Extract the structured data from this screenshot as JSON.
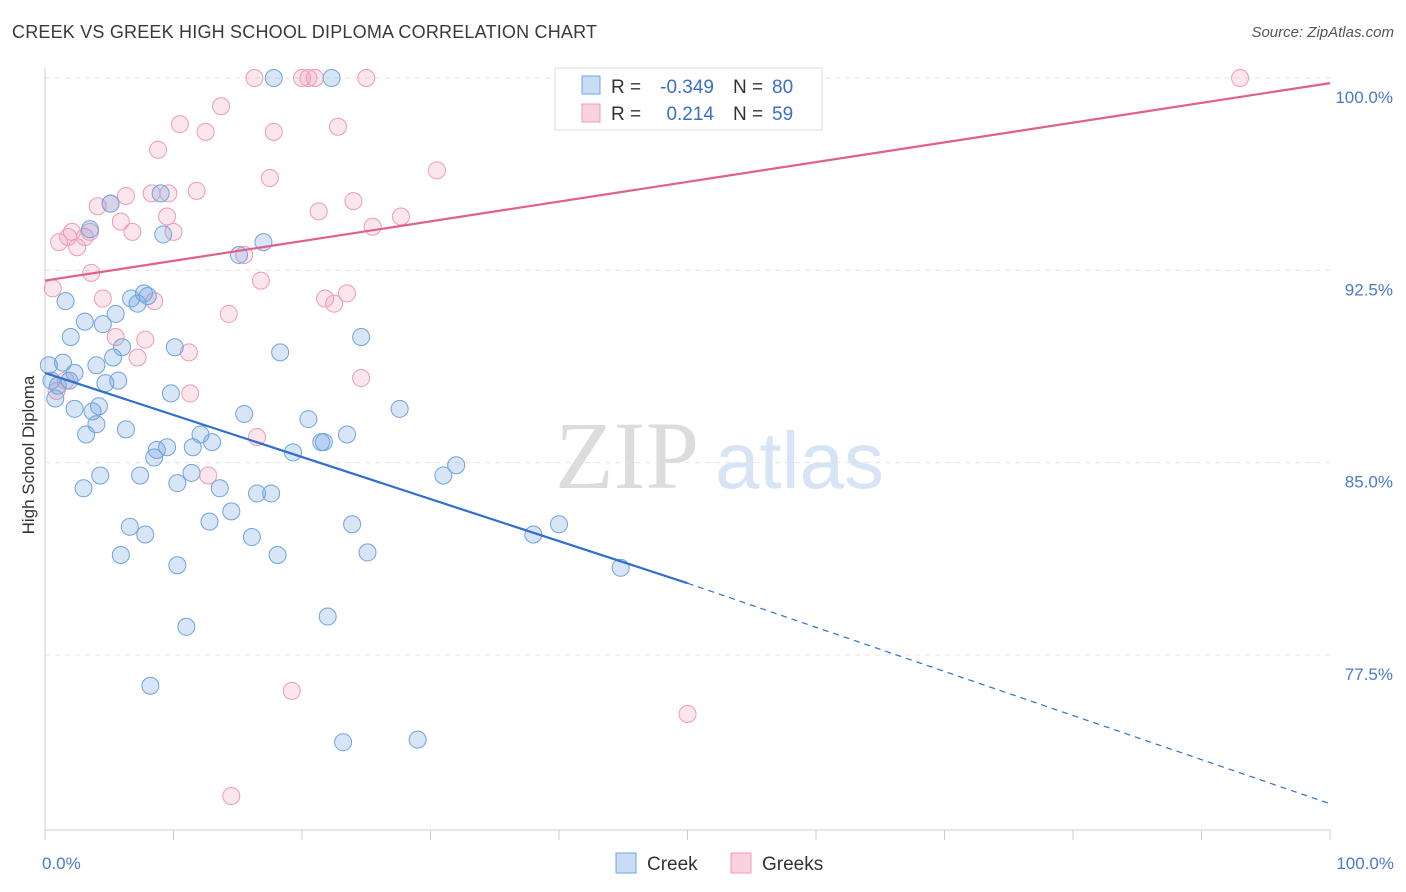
{
  "header": {
    "title": "CREEK VS GREEK HIGH SCHOOL DIPLOMA CORRELATION CHART",
    "source": "Source: ZipAtlas.com"
  },
  "watermark": {
    "zip": "ZIP",
    "atlas": "atlas"
  },
  "colors": {
    "creek": "#6fa3e0",
    "creek_line": "#2f6fcf",
    "greek": "#f09ab5",
    "greek_line": "#e0608a",
    "tick": "#4a7ac8"
  },
  "stats_legend": [
    {
      "r_label": "R =",
      "r_value": "-0.349",
      "n_label": "N =",
      "n_value": "80"
    },
    {
      "r_label": "R =",
      "r_value": "0.214",
      "n_label": "N =",
      "n_value": "59"
    }
  ],
  "chart_data": {
    "type": "scatter",
    "title": "CREEK VS GREEK HIGH SCHOOL DIPLOMA CORRELATION CHART",
    "xlabel": "",
    "ylabel": "High School Diploma",
    "xlim": [
      0,
      100
    ],
    "ylim": [
      71,
      101.5
    ],
    "x_tick_labels": [
      "0.0%",
      "100.0%"
    ],
    "y_ticks": [
      77.5,
      85.0,
      92.5,
      100.0
    ],
    "y_tick_labels": [
      "77.5%",
      "85.0%",
      "92.5%",
      "100.0%"
    ],
    "grid": "horizontal dashed",
    "legend_position": "bottom-center",
    "series": [
      {
        "name": "Creek",
        "r": -0.349,
        "n": 80,
        "trend": {
          "x0": 0,
          "y0": 88.5,
          "x1": 50,
          "y1": 80.3,
          "dashed_to_x": 100,
          "dashed_to_y": 71.7
        },
        "points": [
          [
            0.3,
            88.8
          ],
          [
            0.5,
            88.2
          ],
          [
            0.8,
            87.5
          ],
          [
            1.0,
            88.0
          ],
          [
            1.4,
            88.9
          ],
          [
            1.6,
            91.3
          ],
          [
            1.9,
            88.2
          ],
          [
            2.0,
            89.9
          ],
          [
            2.3,
            88.5
          ],
          [
            2.3,
            87.1
          ],
          [
            3.0,
            84.0
          ],
          [
            3.1,
            90.5
          ],
          [
            3.2,
            86.1
          ],
          [
            3.5,
            94.1
          ],
          [
            3.7,
            87.0
          ],
          [
            4.0,
            88.8
          ],
          [
            4.0,
            86.5
          ],
          [
            4.2,
            87.2
          ],
          [
            4.3,
            84.5
          ],
          [
            4.5,
            90.4
          ],
          [
            4.7,
            88.1
          ],
          [
            5.1,
            95.1
          ],
          [
            5.3,
            89.1
          ],
          [
            5.5,
            90.8
          ],
          [
            5.7,
            88.2
          ],
          [
            5.9,
            81.4
          ],
          [
            6.0,
            89.5
          ],
          [
            6.3,
            86.3
          ],
          [
            6.6,
            82.5
          ],
          [
            6.7,
            91.4
          ],
          [
            7.2,
            91.2
          ],
          [
            7.4,
            84.5
          ],
          [
            7.7,
            91.6
          ],
          [
            7.8,
            82.2
          ],
          [
            8.0,
            91.5
          ],
          [
            8.2,
            76.3
          ],
          [
            8.5,
            85.2
          ],
          [
            8.7,
            85.5
          ],
          [
            9.0,
            95.5
          ],
          [
            9.2,
            93.9
          ],
          [
            9.5,
            85.6
          ],
          [
            9.8,
            87.7
          ],
          [
            10.1,
            89.5
          ],
          [
            10.3,
            84.2
          ],
          [
            10.3,
            81.0
          ],
          [
            11.0,
            78.6
          ],
          [
            11.4,
            84.6
          ],
          [
            12.1,
            86.1
          ],
          [
            12.8,
            82.7
          ],
          [
            13.0,
            85.8
          ],
          [
            13.6,
            84.0
          ],
          [
            14.5,
            83.1
          ],
          [
            15.1,
            93.1
          ],
          [
            15.5,
            86.9
          ],
          [
            16.1,
            82.1
          ],
          [
            16.5,
            83.8
          ],
          [
            17.0,
            93.6
          ],
          [
            17.6,
            83.8
          ],
          [
            17.8,
            100.0
          ],
          [
            18.1,
            81.4
          ],
          [
            18.3,
            89.3
          ],
          [
            19.3,
            85.4
          ],
          [
            20.5,
            86.7
          ],
          [
            21.5,
            85.8
          ],
          [
            22.0,
            79.0
          ],
          [
            22.3,
            100.0
          ],
          [
            23.2,
            74.1
          ],
          [
            23.5,
            86.1
          ],
          [
            23.9,
            82.6
          ],
          [
            24.6,
            89.9
          ],
          [
            25.1,
            81.5
          ],
          [
            27.6,
            87.1
          ],
          [
            29.0,
            74.2
          ],
          [
            31.0,
            84.5
          ],
          [
            32.0,
            84.9
          ],
          [
            38.0,
            82.2
          ],
          [
            40.0,
            82.6
          ],
          [
            44.8,
            80.9
          ],
          [
            21.7,
            85.8
          ],
          [
            11.5,
            85.6
          ]
        ]
      },
      {
        "name": "Greeks",
        "r": 0.214,
        "n": 59,
        "trend": {
          "x0": 0,
          "y0": 92.1,
          "x1": 100,
          "y1": 99.8
        },
        "points": [
          [
            0.6,
            91.8
          ],
          [
            0.9,
            87.8
          ],
          [
            1.1,
            93.6
          ],
          [
            1.6,
            88.2
          ],
          [
            1.8,
            93.8
          ],
          [
            2.1,
            94.0
          ],
          [
            2.5,
            93.4
          ],
          [
            3.1,
            93.8
          ],
          [
            3.5,
            94.0
          ],
          [
            3.6,
            92.4
          ],
          [
            4.1,
            95.0
          ],
          [
            4.5,
            91.4
          ],
          [
            5.1,
            95.1
          ],
          [
            5.5,
            89.9
          ],
          [
            5.9,
            94.4
          ],
          [
            6.3,
            95.4
          ],
          [
            6.8,
            94.0
          ],
          [
            7.2,
            89.1
          ],
          [
            7.8,
            89.8
          ],
          [
            8.3,
            95.5
          ],
          [
            8.5,
            91.3
          ],
          [
            8.8,
            97.2
          ],
          [
            9.5,
            94.6
          ],
          [
            9.6,
            95.5
          ],
          [
            10.0,
            94.0
          ],
          [
            10.5,
            98.2
          ],
          [
            11.2,
            89.3
          ],
          [
            11.3,
            87.7
          ],
          [
            11.8,
            95.6
          ],
          [
            12.5,
            97.9
          ],
          [
            12.7,
            84.5
          ],
          [
            13.7,
            98.9
          ],
          [
            14.3,
            90.8
          ],
          [
            14.5,
            72.0
          ],
          [
            15.5,
            93.1
          ],
          [
            16.3,
            100.0
          ],
          [
            16.8,
            92.1
          ],
          [
            17.5,
            96.1
          ],
          [
            17.8,
            97.9
          ],
          [
            16.5,
            86.0
          ],
          [
            19.2,
            76.1
          ],
          [
            20.0,
            100.0
          ],
          [
            20.5,
            100.0
          ],
          [
            21.0,
            100.0
          ],
          [
            21.3,
            94.8
          ],
          [
            21.8,
            91.4
          ],
          [
            22.5,
            91.2
          ],
          [
            22.8,
            98.1
          ],
          [
            23.5,
            91.6
          ],
          [
            24.0,
            95.2
          ],
          [
            24.6,
            88.3
          ],
          [
            25.0,
            100.0
          ],
          [
            25.5,
            94.2
          ],
          [
            27.7,
            94.6
          ],
          [
            30.5,
            96.4
          ],
          [
            41.0,
            100.0
          ],
          [
            50.0,
            75.2
          ],
          [
            56.0,
            100.0
          ],
          [
            93.0,
            100.0
          ]
        ]
      }
    ]
  },
  "bottom_legend": [
    {
      "label": "Creek"
    },
    {
      "label": "Greeks"
    }
  ]
}
